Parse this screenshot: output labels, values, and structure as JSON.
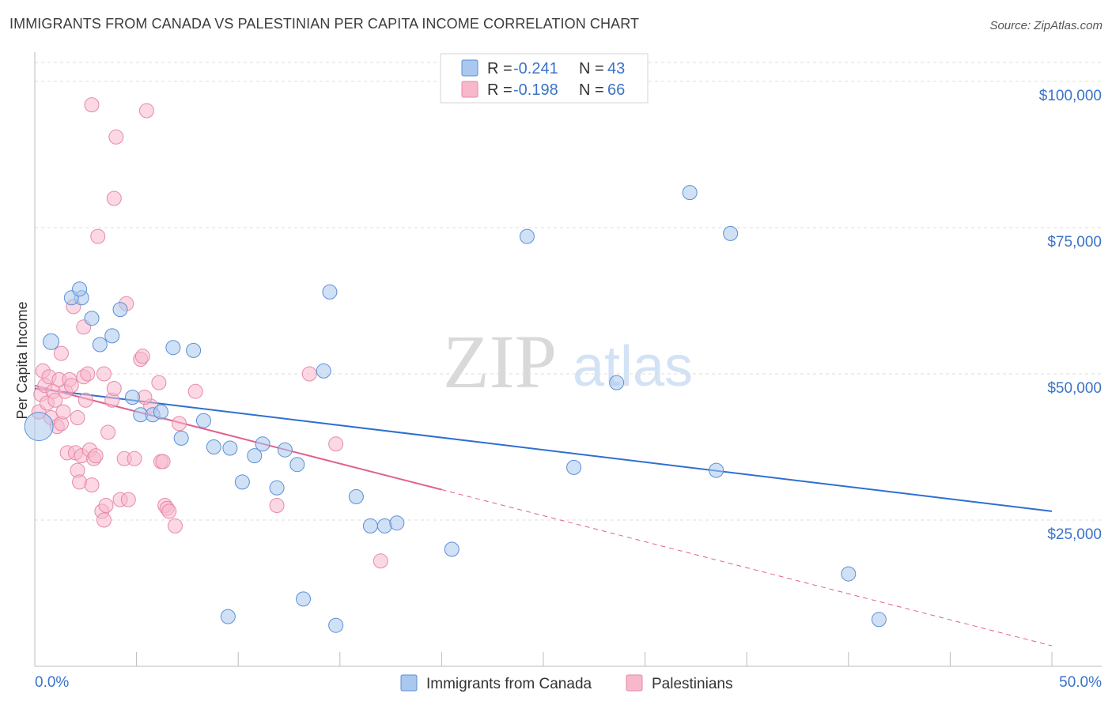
{
  "header": {
    "title": "IMMIGRANTS FROM CANADA VS PALESTINIAN PER CAPITA INCOME CORRELATION CHART",
    "source": "Source: ZipAtlas.com"
  },
  "watermark": {
    "zip": "ZIP",
    "atlas": "atlas"
  },
  "chart_data": {
    "type": "scatter",
    "title": "IMMIGRANTS FROM CANADA VS PALESTINIAN PER CAPITA INCOME CORRELATION CHART",
    "xlabel": "",
    "ylabel": "Per Capita Income",
    "xlim": [
      0,
      50
    ],
    "ylim": [
      0,
      105000
    ],
    "x_tick_labels": [
      "0.0%",
      "50.0%"
    ],
    "y_ticks": [
      {
        "value": 25000,
        "label": "$25,000"
      },
      {
        "value": 50000,
        "label": "$50,000"
      },
      {
        "value": 75000,
        "label": "$75,000"
      },
      {
        "value": 100000,
        "label": "$100,000"
      }
    ],
    "legend_stats": [
      {
        "r_label": "R = ",
        "r_value": "-0.241",
        "n_label": "N = ",
        "n_value": "43"
      },
      {
        "r_label": "R = ",
        "r_value": "-0.198",
        "n_label": "N = ",
        "n_value": "66"
      }
    ],
    "series": [
      {
        "name": "Immigrants from Canada",
        "color": "#a9c8ef",
        "stroke": "#5b8fd6",
        "line_color": "#2f6fd0",
        "trend": {
          "x0": 0,
          "y0": 47500,
          "x1": 50,
          "y1": 26500,
          "solid_until": 50
        },
        "points": [
          [
            0.2,
            41000,
            18
          ],
          [
            0.8,
            55500,
            10
          ],
          [
            2.3,
            63000,
            9
          ],
          [
            1.8,
            63000,
            9
          ],
          [
            2.2,
            64500,
            9
          ],
          [
            2.8,
            59500,
            9
          ],
          [
            3.2,
            55000,
            9
          ],
          [
            3.8,
            56500,
            9
          ],
          [
            4.2,
            61000,
            9
          ],
          [
            4.8,
            46000,
            9
          ],
          [
            5.2,
            43000,
            9
          ],
          [
            5.8,
            43000,
            9
          ],
          [
            6.2,
            43500,
            9
          ],
          [
            6.8,
            54500,
            9
          ],
          [
            7.2,
            39000,
            9
          ],
          [
            7.8,
            54000,
            9
          ],
          [
            8.3,
            42000,
            9
          ],
          [
            8.8,
            37500,
            9
          ],
          [
            9.6,
            37300,
            9
          ],
          [
            10.2,
            31500,
            9
          ],
          [
            10.8,
            36000,
            9
          ],
          [
            11.2,
            38000,
            9
          ],
          [
            11.9,
            30500,
            9
          ],
          [
            12.3,
            37000,
            9
          ],
          [
            12.9,
            34500,
            9
          ],
          [
            14.2,
            50500,
            9
          ],
          [
            14.5,
            64000,
            9
          ],
          [
            15.8,
            29000,
            9
          ],
          [
            16.5,
            24000,
            9
          ],
          [
            17.2,
            24000,
            9
          ],
          [
            17.8,
            24500,
            9
          ],
          [
            13.2,
            11500,
            9
          ],
          [
            9.5,
            8500,
            9
          ],
          [
            14.8,
            7000,
            9
          ],
          [
            20.5,
            20000,
            9
          ],
          [
            24.2,
            73500,
            9
          ],
          [
            26.5,
            34000,
            9
          ],
          [
            28.6,
            48500,
            9
          ],
          [
            32.2,
            81000,
            9
          ],
          [
            33.5,
            33500,
            9
          ],
          [
            34.2,
            74000,
            9
          ],
          [
            40.0,
            15800,
            9
          ],
          [
            41.5,
            8000,
            9
          ]
        ]
      },
      {
        "name": "Palestinians",
        "color": "#f7b8cc",
        "stroke": "#e68aa8",
        "line_color": "#e2608e",
        "trend": {
          "x0": 0,
          "y0": 48000,
          "x1": 50,
          "y1": 3500,
          "solid_until": 20
        },
        "points": [
          [
            0.2,
            43500,
            9
          ],
          [
            0.3,
            46500,
            9
          ],
          [
            0.4,
            50500,
            9
          ],
          [
            0.5,
            48000,
            9
          ],
          [
            0.6,
            45000,
            9
          ],
          [
            0.7,
            49500,
            9
          ],
          [
            0.8,
            42500,
            9
          ],
          [
            0.9,
            47000,
            9
          ],
          [
            1.0,
            45500,
            9
          ],
          [
            1.1,
            41000,
            9
          ],
          [
            1.2,
            49000,
            9
          ],
          [
            1.3,
            41500,
            9
          ],
          [
            1.3,
            53500,
            9
          ],
          [
            1.4,
            43500,
            9
          ],
          [
            1.5,
            47000,
            9
          ],
          [
            1.6,
            36500,
            9
          ],
          [
            1.7,
            49000,
            9
          ],
          [
            1.8,
            48000,
            9
          ],
          [
            1.9,
            61500,
            9
          ],
          [
            2.0,
            36500,
            9
          ],
          [
            2.1,
            42500,
            9
          ],
          [
            2.1,
            33500,
            9
          ],
          [
            2.2,
            31500,
            9
          ],
          [
            2.3,
            36000,
            9
          ],
          [
            2.4,
            58000,
            9
          ],
          [
            2.4,
            49500,
            9
          ],
          [
            2.5,
            45500,
            9
          ],
          [
            2.6,
            50000,
            9
          ],
          [
            2.7,
            37000,
            9
          ],
          [
            2.8,
            31000,
            9
          ],
          [
            2.9,
            35500,
            9
          ],
          [
            3.0,
            36000,
            9
          ],
          [
            2.8,
            96000,
            9
          ],
          [
            3.1,
            73500,
            9
          ],
          [
            3.3,
            26500,
            9
          ],
          [
            3.4,
            50000,
            9
          ],
          [
            3.4,
            25000,
            9
          ],
          [
            3.5,
            27500,
            9
          ],
          [
            3.6,
            40000,
            9
          ],
          [
            3.8,
            45500,
            9
          ],
          [
            3.9,
            47500,
            9
          ],
          [
            3.9,
            80000,
            9
          ],
          [
            4.0,
            90500,
            9
          ],
          [
            4.2,
            28500,
            9
          ],
          [
            4.4,
            35500,
            9
          ],
          [
            4.5,
            62000,
            9
          ],
          [
            4.6,
            28500,
            9
          ],
          [
            4.9,
            35500,
            9
          ],
          [
            5.2,
            52500,
            9
          ],
          [
            5.3,
            53000,
            9
          ],
          [
            5.5,
            95000,
            9
          ],
          [
            5.7,
            44500,
            9
          ],
          [
            6.1,
            48500,
            9
          ],
          [
            6.2,
            35000,
            9
          ],
          [
            6.3,
            35000,
            9
          ],
          [
            6.4,
            27500,
            9
          ],
          [
            6.5,
            27000,
            9
          ],
          [
            6.9,
            24000,
            9
          ],
          [
            7.1,
            41500,
            9
          ],
          [
            7.9,
            47000,
            9
          ],
          [
            11.9,
            27500,
            9
          ],
          [
            13.5,
            50000,
            9
          ],
          [
            14.8,
            38000,
            9
          ],
          [
            17.0,
            18000,
            9
          ],
          [
            6.6,
            26500,
            9
          ],
          [
            5.4,
            46000,
            9
          ]
        ]
      }
    ]
  },
  "bottom_legend": {
    "items": [
      "Immigrants from Canada",
      "Palestinians"
    ]
  }
}
